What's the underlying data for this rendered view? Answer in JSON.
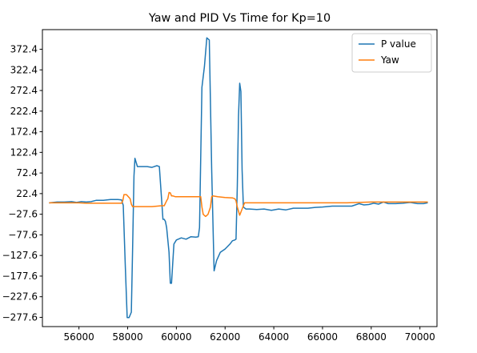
{
  "chart_data": {
    "type": "line",
    "title": "Yaw and PID Vs Time for Kp=10",
    "xlabel": "",
    "ylabel": "",
    "xlim": [
      54500,
      70700
    ],
    "ylim": [
      -300,
      420
    ],
    "grid": false,
    "legend_position": "upper right",
    "xticks": [
      56000,
      58000,
      60000,
      62000,
      64000,
      66000,
      68000,
      70000
    ],
    "yticks": [
      -277.6,
      -227.6,
      -177.6,
      -127.6,
      -77.6,
      -27.6,
      22.4,
      72.4,
      122.4,
      172.4,
      222.4,
      272.4,
      322.4,
      372.4
    ],
    "ytick_labels": [
      "−277.6",
      "−227.6",
      "−177.6",
      "−127.6",
      "−77.6",
      "−27.6",
      "22.4",
      "72.4",
      "122.4",
      "172.4",
      "222.4",
      "272.4",
      "322.4",
      "372.4"
    ],
    "series": [
      {
        "name": "P value",
        "color": "#1f77b4",
        "x": [
          54800,
          55100,
          55400,
          55700,
          55900,
          56100,
          56300,
          56500,
          56700,
          57000,
          57300,
          57600,
          57750,
          57820,
          57900,
          57980,
          58060,
          58150,
          58200,
          58260,
          58300,
          58400,
          58600,
          58800,
          59000,
          59200,
          59300,
          59450,
          59500,
          59550,
          59600,
          59700,
          59750,
          59800,
          59900,
          60000,
          60200,
          60400,
          60600,
          60800,
          60900,
          60950,
          61050,
          61150,
          61250,
          61350,
          61450,
          61550,
          61650,
          61800,
          62000,
          62200,
          62300,
          62400,
          62450,
          62500,
          62550,
          62600,
          62650,
          62700,
          62750,
          62850,
          63000,
          63300,
          63600,
          63900,
          64200,
          64500,
          64800,
          65100,
          65400,
          65700,
          66000,
          66400,
          66800,
          67200,
          67500,
          67700,
          67900,
          68100,
          68300,
          68500,
          68700,
          69000,
          69300,
          69600,
          69900,
          70150,
          70300
        ],
        "y": [
          0,
          2,
          2,
          3,
          1,
          3,
          2,
          3,
          6,
          6,
          8,
          8,
          7,
          -6,
          -150,
          -278,
          -278,
          -265,
          -120,
          65,
          108,
          88,
          88,
          88,
          86,
          90,
          88,
          -40,
          -40,
          -45,
          -60,
          -120,
          -195,
          -195,
          -100,
          -90,
          -85,
          -88,
          -82,
          -83,
          -82,
          -60,
          280,
          330,
          400,
          395,
          80,
          -165,
          -140,
          -120,
          -112,
          -100,
          -92,
          -90,
          -88,
          40,
          210,
          290,
          270,
          80,
          -10,
          -15,
          -15,
          -16,
          -15,
          -18,
          -15,
          -17,
          -13,
          -13,
          -13,
          -11,
          -10,
          -8,
          -8,
          -8,
          -2,
          -5,
          -4,
          -1,
          -3,
          2,
          -2,
          -2,
          -1,
          1,
          -2,
          -2,
          0
        ]
      },
      {
        "name": "Yaw",
        "color": "#ff7f0e",
        "x": [
          54800,
          55500,
          56000,
          56300,
          57000,
          57600,
          57750,
          57800,
          57850,
          57950,
          58100,
          58150,
          58200,
          58400,
          59000,
          59400,
          59500,
          59600,
          59650,
          59700,
          59750,
          59800,
          59850,
          59950,
          60500,
          61000,
          61050,
          61100,
          61200,
          61300,
          61400,
          61450,
          61500,
          61700,
          62000,
          62300,
          62400,
          62450,
          62500,
          62600,
          62700,
          62800,
          62850,
          63000,
          64000,
          65000,
          66000,
          67000,
          67500,
          68000,
          69000,
          70000,
          70300
        ],
        "y": [
          0,
          0,
          0,
          -1,
          -1,
          -1,
          -1,
          5,
          20,
          20,
          10,
          -3,
          -9,
          -9,
          -9,
          -7,
          -7,
          5,
          10,
          25,
          24,
          17,
          17,
          15,
          15,
          15,
          -10,
          -28,
          -33,
          -28,
          -10,
          15,
          17,
          15,
          13,
          12,
          10,
          5,
          -10,
          -30,
          -15,
          0,
          0,
          0,
          0,
          0,
          0,
          0,
          1,
          2,
          2,
          2,
          2
        ]
      }
    ]
  }
}
